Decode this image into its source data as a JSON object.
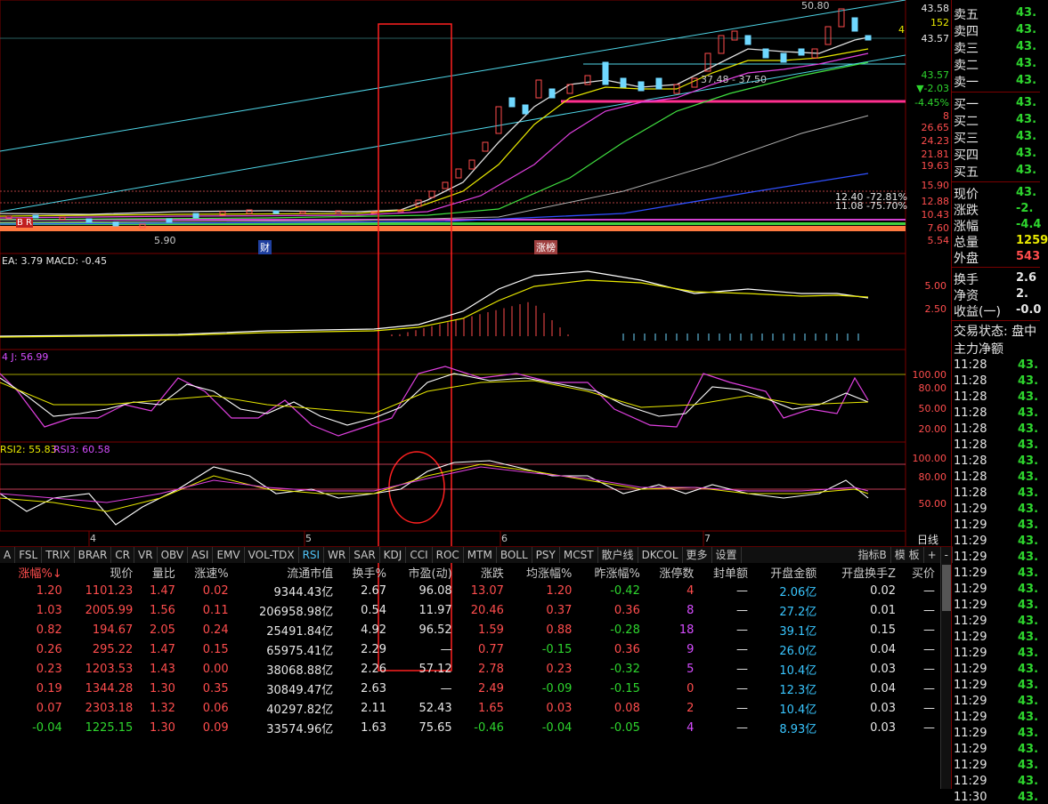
{
  "colors": {
    "up": "#ff4d4d",
    "down": "#2ed52e",
    "cyan": "#39c6ff",
    "bg": "#000000",
    "panel_border": "#7a0000"
  },
  "price_panel": {
    "marks": {
      "high": "50.80",
      "low1": "37.48 - 37.50",
      "low2": "5.90",
      "pct1": "12.40 -72.81%",
      "pct2": "11.08 -75.70%"
    },
    "badges": {
      "cai": "财",
      "zhangbang": "涨榜",
      "br": "B R"
    },
    "axis": [
      "43.58",
      "152",
      "43.57",
      "4",
      "43.57",
      "▼-2.03",
      "-4.45%",
      "8",
      "26.65",
      "24.23",
      "21.81",
      "19.63",
      "15.90",
      "12.88",
      "10.43",
      "7.60",
      "5.54"
    ]
  },
  "macd_panel": {
    "label": "EA: 3.79  MACD: -0.45",
    "axis": [
      "5.00",
      "2.50"
    ]
  },
  "kdj_panel": {
    "label": "4  J: 56.99",
    "axis": [
      "100.00",
      "80.00",
      "50.00",
      "20.00"
    ]
  },
  "rsi_panel": {
    "label_rsi2": "RSI2: 55.83",
    "label_rsi3": "RSI3: 60.58",
    "axis": [
      "100.00",
      "80.00",
      "50.00"
    ]
  },
  "x_axis": [
    "4",
    "5",
    "6",
    "7"
  ],
  "period": "日线",
  "tabs": [
    "A",
    "FSL",
    "TRIX",
    "BRAR",
    "CR",
    "VR",
    "OBV",
    "ASI",
    "EMV",
    "VOL-TDX",
    "RSI",
    "WR",
    "SAR",
    "KDJ",
    "CCI",
    "ROC",
    "MTM",
    "BOLL",
    "PSY",
    "MCST",
    "散户线",
    "DKCOL",
    "更多",
    "设置"
  ],
  "active_tab": "RSI",
  "tabs_right": [
    "指标B",
    "模 板",
    "+",
    "-"
  ],
  "table": {
    "headers": [
      "涨幅%↓",
      "现价",
      "量比",
      "涨速%",
      "流通市值",
      "换手%",
      "市盈(动)",
      "涨跌",
      "均涨幅%",
      "昨涨幅%",
      "涨停数",
      "封单额",
      "开盘金额",
      "开盘换手Z",
      "买价"
    ],
    "rows": [
      [
        "1.20",
        "1101.23",
        "1.47",
        "0.02",
        "9344.43亿",
        "2.67",
        "96.08",
        "13.07",
        "1.20",
        "-0.42",
        "4",
        "—",
        "2.06亿",
        "0.02",
        "—"
      ],
      [
        "1.03",
        "2005.99",
        "1.56",
        "0.11",
        "206958.98亿",
        "0.54",
        "11.97",
        "20.46",
        "0.37",
        "0.36",
        "8",
        "—",
        "27.2亿",
        "0.01",
        "—"
      ],
      [
        "0.82",
        "194.67",
        "2.05",
        "0.24",
        "25491.84亿",
        "4.92",
        "96.52",
        "1.59",
        "0.88",
        "-0.28",
        "18",
        "—",
        "39.1亿",
        "0.15",
        "—"
      ],
      [
        "0.26",
        "295.22",
        "1.47",
        "0.15",
        "65975.41亿",
        "2.29",
        "—",
        "0.77",
        "-0.15",
        "0.36",
        "9",
        "—",
        "26.0亿",
        "0.04",
        "—"
      ],
      [
        "0.23",
        "1203.53",
        "1.43",
        "0.00",
        "38068.88亿",
        "2.26",
        "57.12",
        "2.78",
        "0.23",
        "-0.32",
        "5",
        "—",
        "10.4亿",
        "0.03",
        "—"
      ],
      [
        "0.19",
        "1344.28",
        "1.30",
        "0.35",
        "30849.47亿",
        "2.63",
        "—",
        "2.49",
        "-0.09",
        "-0.15",
        "0",
        "—",
        "12.3亿",
        "0.04",
        "—"
      ],
      [
        "0.07",
        "2303.18",
        "1.32",
        "0.06",
        "40297.82亿",
        "2.11",
        "52.43",
        "1.65",
        "0.03",
        "0.08",
        "2",
        "—",
        "10.4亿",
        "0.03",
        "—"
      ],
      [
        "-0.04",
        "1225.15",
        "1.30",
        "0.09",
        "33574.96亿",
        "1.63",
        "75.65",
        "-0.46",
        "-0.04",
        "-0.05",
        "4",
        "—",
        "8.93亿",
        "0.03",
        "—"
      ]
    ]
  },
  "quote": {
    "asks": [
      {
        "label": "卖五",
        "value": "43."
      },
      {
        "label": "卖四",
        "value": "43."
      },
      {
        "label": "卖三",
        "value": "43."
      },
      {
        "label": "卖二",
        "value": "43."
      },
      {
        "label": "卖一",
        "value": "43."
      }
    ],
    "bids": [
      {
        "label": "买一",
        "value": "43."
      },
      {
        "label": "买二",
        "value": "43."
      },
      {
        "label": "买三",
        "value": "43."
      },
      {
        "label": "买四",
        "value": "43."
      },
      {
        "label": "买五",
        "value": "43."
      }
    ],
    "stats": [
      {
        "label": "现价",
        "value": "43."
      },
      {
        "label": "涨跌",
        "value": "-2."
      },
      {
        "label": "涨幅",
        "value": "-4.4"
      },
      {
        "label": "总量",
        "value": "1259"
      },
      {
        "label": "外盘",
        "value": "543"
      }
    ],
    "stats2": [
      {
        "label": "换手",
        "value": "2.6"
      },
      {
        "label": "净资",
        "value": "2."
      },
      {
        "label": "收益(一)",
        "value": "-0.0"
      }
    ],
    "status": "交易状态: 盘中",
    "net": "主力净额",
    "ticks": [
      [
        "11:28",
        "43."
      ],
      [
        "11:28",
        "43."
      ],
      [
        "11:28",
        "43."
      ],
      [
        "11:28",
        "43."
      ],
      [
        "11:28",
        "43."
      ],
      [
        "11:28",
        "43."
      ],
      [
        "11:28",
        "43."
      ],
      [
        "11:28",
        "43."
      ],
      [
        "11:28",
        "43."
      ],
      [
        "11:29",
        "43."
      ],
      [
        "11:29",
        "43."
      ],
      [
        "11:29",
        "43."
      ],
      [
        "11:29",
        "43."
      ],
      [
        "11:29",
        "43."
      ],
      [
        "11:29",
        "43."
      ],
      [
        "11:29",
        "43."
      ],
      [
        "11:29",
        "43."
      ],
      [
        "11:29",
        "43."
      ],
      [
        "11:29",
        "43."
      ],
      [
        "11:29",
        "43."
      ],
      [
        "11:29",
        "43."
      ],
      [
        "11:29",
        "43."
      ],
      [
        "11:29",
        "43."
      ],
      [
        "11:29",
        "43."
      ],
      [
        "11:29",
        "43."
      ],
      [
        "11:29",
        "43."
      ],
      [
        "11:29",
        "43."
      ],
      [
        "11:30",
        "43."
      ]
    ]
  }
}
